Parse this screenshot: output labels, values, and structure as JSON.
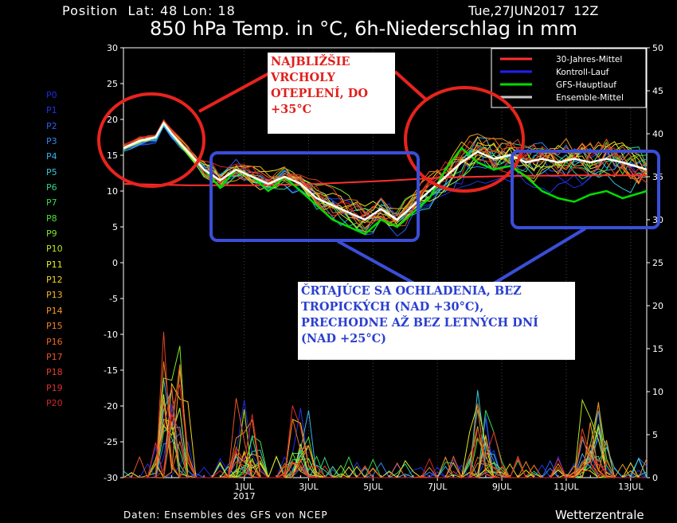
{
  "header": {
    "position": "Position  Lat: 48 Lon: 18",
    "date": "Tue,27JUN2017  12Z",
    "title": "850 hPa Temp. in °C, 6h-Niederschlag in mm"
  },
  "footer": {
    "source": "Daten: Ensembles des GFS von NCEP",
    "brand": "Wetterzentrale"
  },
  "annotations": {
    "warm": "NAJBLIŽŠIE VRCHOLY OTEPLENÍ, DO +35°C",
    "cold": "ČRTAJÚCE SA OCHLADENIA, BEZ TROPICKÝCH (NAD +30°C), PRECHODNE AŽ BEZ LETNÝCH DNÍ (NAD +25°C)"
  },
  "members": [
    {
      "name": "P0",
      "color": "#1f2bdc"
    },
    {
      "name": "P1",
      "color": "#2233e6"
    },
    {
      "name": "P2",
      "color": "#2a5cf0"
    },
    {
      "name": "P3",
      "color": "#2f88f0"
    },
    {
      "name": "P4",
      "color": "#35b0ef"
    },
    {
      "name": "P5",
      "color": "#33c9d8"
    },
    {
      "name": "P6",
      "color": "#2fd38a"
    },
    {
      "name": "P7",
      "color": "#33dc4a"
    },
    {
      "name": "P8",
      "color": "#4be233"
    },
    {
      "name": "P9",
      "color": "#7fe62a"
    },
    {
      "name": "P10",
      "color": "#b6ea23"
    },
    {
      "name": "P11",
      "color": "#e6ea1f"
    },
    {
      "name": "P12",
      "color": "#f4d21e"
    },
    {
      "name": "P13",
      "color": "#f4b51f"
    },
    {
      "name": "P14",
      "color": "#f29a20"
    },
    {
      "name": "P15",
      "color": "#f08222"
    },
    {
      "name": "P16",
      "color": "#ed6a24"
    },
    {
      "name": "P17",
      "color": "#e95426"
    },
    {
      "name": "P18",
      "color": "#e54028"
    },
    {
      "name": "P19",
      "color": "#e0302a"
    },
    {
      "name": "P20",
      "color": "#d8232b"
    }
  ],
  "chart_data": {
    "type": "line",
    "y_left": {
      "range": [
        -30,
        30
      ],
      "ticks": [
        -30,
        -25,
        -20,
        -15,
        -10,
        -5,
        0,
        5,
        10,
        15,
        20,
        25,
        30
      ]
    },
    "y_right": {
      "range": [
        0,
        50
      ],
      "ticks": [
        0,
        5,
        10,
        15,
        20,
        25,
        30,
        35,
        40,
        45,
        50
      ]
    },
    "x": {
      "range_days": [
        0,
        16.25
      ],
      "ticks": [
        {
          "day": 3.75,
          "label": "1JUL",
          "sub": "2017"
        },
        {
          "day": 5.75,
          "label": "3JUL",
          "sub": ""
        },
        {
          "day": 7.75,
          "label": "5JUL",
          "sub": ""
        },
        {
          "day": 9.75,
          "label": "7JUL",
          "sub": ""
        },
        {
          "day": 11.75,
          "label": "9JUL",
          "sub": ""
        },
        {
          "day": 13.75,
          "label": "11JUL",
          "sub": ""
        },
        {
          "day": 15.75,
          "label": "13JUL",
          "sub": ""
        }
      ]
    },
    "legend": {
      "placement": "top-right",
      "entries": [
        {
          "name": "30-Jahres-Mittel",
          "color": "#ff3030"
        },
        {
          "name": "Kontroll-Lauf",
          "color": "#2020ff"
        },
        {
          "name": "GFS-Hauptlauf",
          "color": "#00dd00"
        },
        {
          "name": "Ensemble-Mittel",
          "color": "#c8c8c8"
        }
      ]
    },
    "climate_mean": [
      [
        0,
        11
      ],
      [
        2,
        10.8
      ],
      [
        4,
        10.8
      ],
      [
        6,
        11
      ],
      [
        8,
        11.4
      ],
      [
        10,
        11.9
      ],
      [
        12,
        12.1
      ],
      [
        14,
        12.2
      ],
      [
        16.25,
        12.2
      ]
    ],
    "ensemble_mean": [
      [
        0,
        16
      ],
      [
        0.5,
        17
      ],
      [
        1,
        17.5
      ],
      [
        1.25,
        19.5
      ],
      [
        1.5,
        18
      ],
      [
        2,
        15.5
      ],
      [
        2.5,
        13
      ],
      [
        3,
        11.5
      ],
      [
        3.5,
        13
      ],
      [
        4,
        12
      ],
      [
        4.5,
        11
      ],
      [
        5,
        12
      ],
      [
        5.5,
        11
      ],
      [
        6,
        9
      ],
      [
        6.5,
        8
      ],
      [
        7,
        7
      ],
      [
        7.5,
        6
      ],
      [
        8,
        7.5
      ],
      [
        8.5,
        6
      ],
      [
        9,
        8
      ],
      [
        9.5,
        10
      ],
      [
        10,
        12
      ],
      [
        10.5,
        14
      ],
      [
        11,
        15.5
      ],
      [
        11.5,
        14.5
      ],
      [
        12,
        15
      ],
      [
        12.5,
        14
      ],
      [
        13,
        14.5
      ],
      [
        13.5,
        14
      ],
      [
        14,
        14.5
      ],
      [
        14.5,
        14
      ],
      [
        15,
        14.5
      ],
      [
        15.5,
        14
      ],
      [
        16.25,
        13
      ]
    ],
    "gfs_main": [
      [
        0,
        16
      ],
      [
        0.5,
        17
      ],
      [
        1,
        17.5
      ],
      [
        1.25,
        19.5
      ],
      [
        1.5,
        18
      ],
      [
        2,
        15.5
      ],
      [
        2.5,
        13
      ],
      [
        3,
        10.5
      ],
      [
        3.5,
        13
      ],
      [
        4,
        12
      ],
      [
        4.5,
        10
      ],
      [
        5,
        12
      ],
      [
        5.5,
        10
      ],
      [
        6,
        8
      ],
      [
        6.5,
        6
      ],
      [
        7,
        5
      ],
      [
        7.5,
        4
      ],
      [
        8,
        6
      ],
      [
        8.5,
        5
      ],
      [
        9,
        7
      ],
      [
        9.5,
        9
      ],
      [
        10,
        13
      ],
      [
        10.5,
        16
      ],
      [
        11,
        14
      ],
      [
        11.5,
        13
      ],
      [
        12,
        13.5
      ],
      [
        12.5,
        12
      ],
      [
        13,
        10
      ],
      [
        13.5,
        9
      ],
      [
        14,
        8.5
      ],
      [
        14.5,
        9.5
      ],
      [
        15,
        10
      ],
      [
        15.5,
        9
      ],
      [
        16.25,
        10
      ]
    ],
    "precip_spikes": [
      {
        "day": 1.5,
        "mm": 20
      },
      {
        "day": 3.75,
        "mm": 10
      },
      {
        "day": 5.5,
        "mm": 9
      },
      {
        "day": 11.25,
        "mm": 14
      },
      {
        "day": 14.5,
        "mm": 10
      }
    ]
  }
}
